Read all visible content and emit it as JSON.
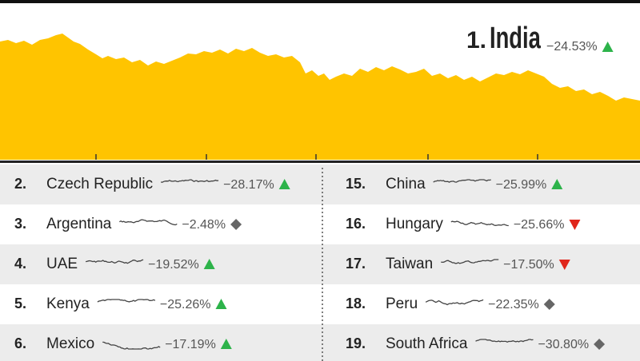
{
  "header": {
    "rank": "1.",
    "name": "India",
    "change": "−24.53%",
    "trend": "up"
  },
  "left": [
    {
      "rank": "2.",
      "name": "Czech Republic",
      "change": "−28.17%",
      "trend": "up"
    },
    {
      "rank": "3.",
      "name": "Argentina",
      "change": "−2.48%",
      "trend": "flat"
    },
    {
      "rank": "4.",
      "name": "UAE",
      "change": "−19.52%",
      "trend": "up"
    },
    {
      "rank": "5.",
      "name": "Kenya",
      "change": "−25.26%",
      "trend": "up"
    },
    {
      "rank": "6.",
      "name": "Mexico",
      "change": "−17.19%",
      "trend": "up"
    }
  ],
  "right": [
    {
      "rank": "15.",
      "name": "China",
      "change": "−25.99%",
      "trend": "up"
    },
    {
      "rank": "16.",
      "name": "Hungary",
      "change": "−25.66%",
      "trend": "down"
    },
    {
      "rank": "17.",
      "name": "Taiwan",
      "change": "−17.50%",
      "trend": "down"
    },
    {
      "rank": "18.",
      "name": "Peru",
      "change": "−22.35%",
      "trend": "flat"
    },
    {
      "rank": "19.",
      "name": "South Africa",
      "change": "−30.80%",
      "trend": "flat"
    }
  ]
}
